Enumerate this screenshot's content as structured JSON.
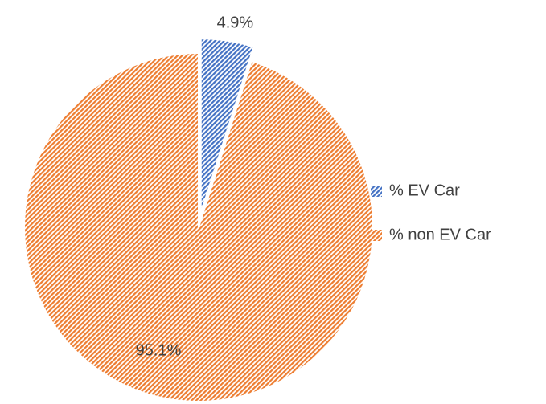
{
  "chart_data": {
    "type": "pie",
    "categories": [
      "% EV Car",
      "% non EV Car"
    ],
    "values": [
      4.9,
      95.1
    ],
    "value_labels": [
      "4.9%",
      "95.1%"
    ],
    "colors": [
      "#4472c4",
      "#ed7d31"
    ],
    "explode": [
      true,
      false
    ],
    "legend": "right"
  }
}
